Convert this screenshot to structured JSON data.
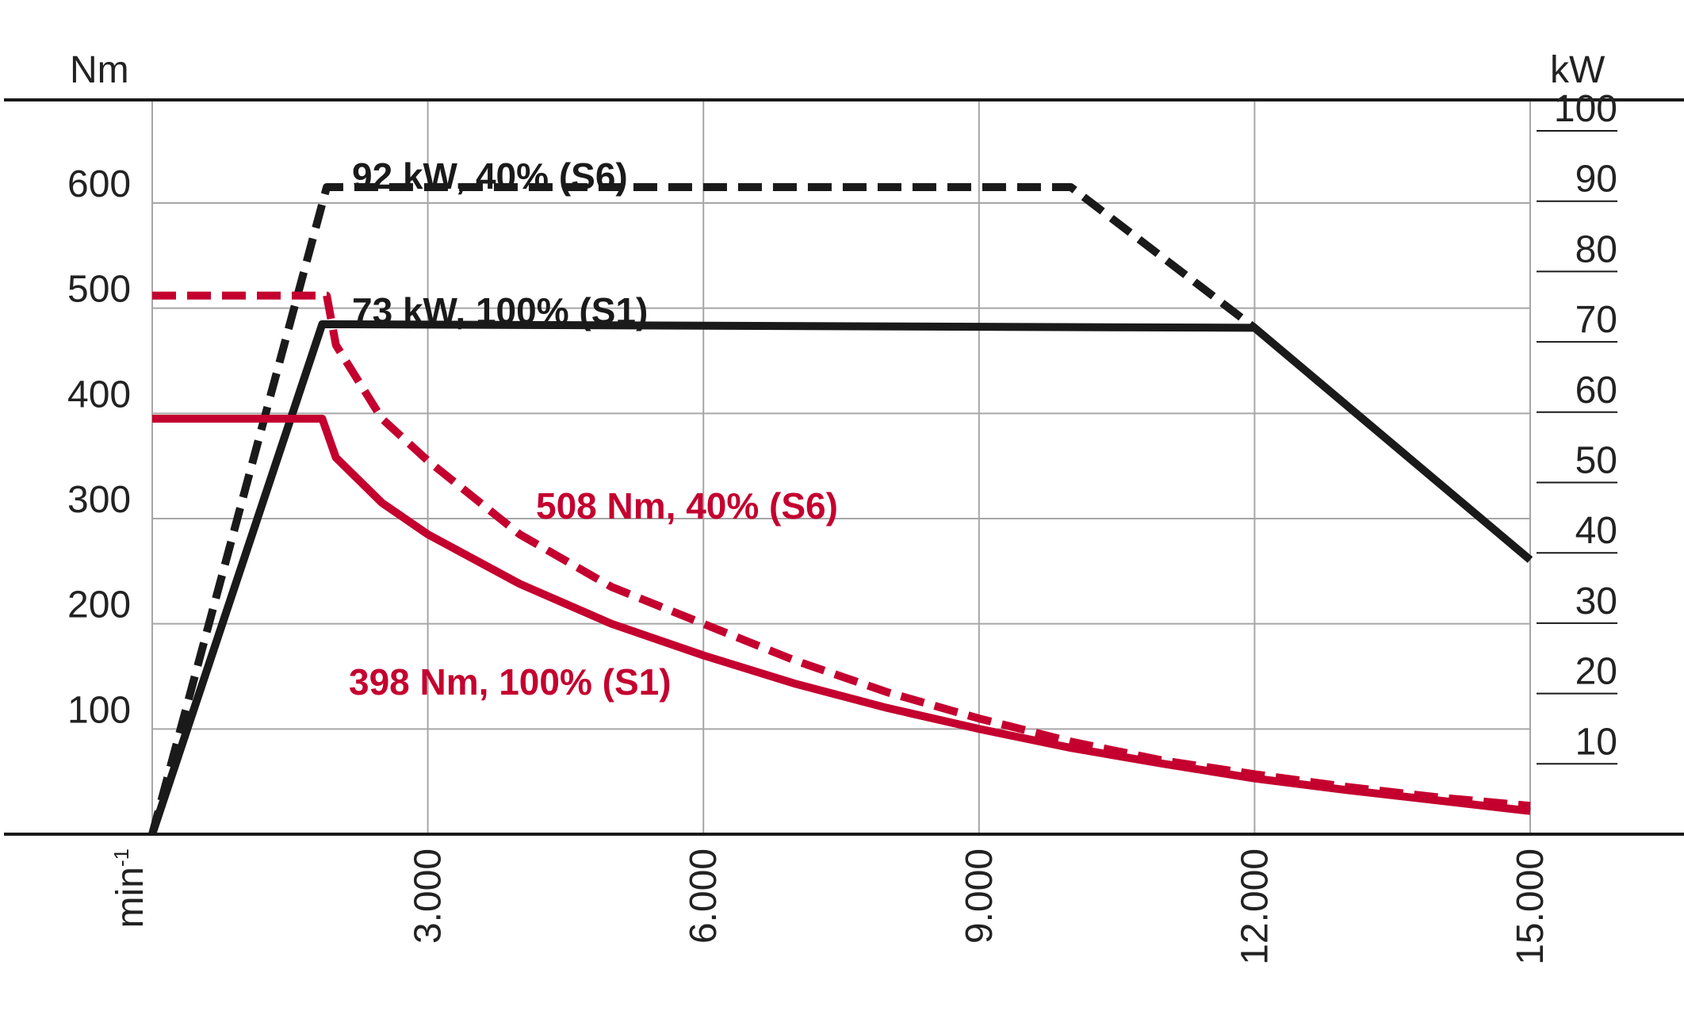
{
  "chart_data": {
    "type": "line",
    "left_axis_unit": "Nm",
    "right_axis_unit": "kW",
    "x_axis_unit": "min",
    "x_axis_unit_sup": "-1",
    "x_range": [
      0,
      15000
    ],
    "x_ticks": [
      {
        "value": 3000,
        "label": "3.000"
      },
      {
        "value": 6000,
        "label": "6.000"
      },
      {
        "value": 9000,
        "label": "9.000"
      },
      {
        "value": 12000,
        "label": "12.000"
      },
      {
        "value": 15000,
        "label": "15.000"
      }
    ],
    "left_range": [
      0,
      700
    ],
    "left_ticks": [
      {
        "value": 100,
        "label": "100"
      },
      {
        "value": 200,
        "label": "200"
      },
      {
        "value": 300,
        "label": "300"
      },
      {
        "value": 400,
        "label": "400"
      },
      {
        "value": 500,
        "label": "500"
      },
      {
        "value": 600,
        "label": "600"
      }
    ],
    "right_range": [
      0,
      107
    ],
    "right_ticks": [
      {
        "value": 10,
        "label": "10"
      },
      {
        "value": 20,
        "label": "20"
      },
      {
        "value": 30,
        "label": "30"
      },
      {
        "value": 40,
        "label": "40"
      },
      {
        "value": 50,
        "label": "50"
      },
      {
        "value": 60,
        "label": "60"
      },
      {
        "value": 70,
        "label": "70"
      },
      {
        "value": 80,
        "label": "80"
      },
      {
        "value": 90,
        "label": "90"
      },
      {
        "value": 100,
        "label": "100"
      }
    ],
    "grid": true,
    "series": [
      {
        "name": "92 kW, 40% (S6)",
        "quantity": "power",
        "axis": "right",
        "color": "#1a1a1a",
        "dashed": true,
        "points": [
          [
            0,
            0
          ],
          [
            1900,
            92
          ],
          [
            10000,
            92
          ],
          [
            12000,
            72
          ]
        ]
      },
      {
        "name": "73 kW, 100% (S1)",
        "quantity": "power",
        "axis": "right",
        "color": "#1a1a1a",
        "dashed": false,
        "points": [
          [
            0,
            0
          ],
          [
            1850,
            72.5
          ],
          [
            12000,
            72
          ],
          [
            15000,
            39
          ]
        ]
      },
      {
        "name": "508 Nm, 40% (S6)",
        "quantity": "torque",
        "axis": "left",
        "color": "#c4002f",
        "dashed": true,
        "points": [
          [
            0,
            512
          ],
          [
            1900,
            512
          ],
          [
            2000,
            465
          ],
          [
            2500,
            395
          ],
          [
            3000,
            355
          ],
          [
            4000,
            285
          ],
          [
            5000,
            235
          ],
          [
            6000,
            200
          ],
          [
            7000,
            165
          ],
          [
            8000,
            135
          ],
          [
            9000,
            110
          ],
          [
            10000,
            88
          ],
          [
            11000,
            70
          ],
          [
            12000,
            57
          ],
          [
            13000,
            45
          ],
          [
            14000,
            35
          ],
          [
            15000,
            27
          ]
        ]
      },
      {
        "name": "398 Nm, 100% (S1)",
        "quantity": "torque",
        "axis": "left",
        "color": "#c4002f",
        "dashed": false,
        "points": [
          [
            0,
            395
          ],
          [
            1850,
            395
          ],
          [
            2000,
            358
          ],
          [
            2500,
            315
          ],
          [
            3000,
            285
          ],
          [
            4000,
            238
          ],
          [
            5000,
            200
          ],
          [
            6000,
            170
          ],
          [
            7000,
            143
          ],
          [
            8000,
            120
          ],
          [
            9000,
            100
          ],
          [
            10000,
            82
          ],
          [
            11000,
            67
          ],
          [
            12000,
            53
          ],
          [
            13000,
            42
          ],
          [
            14000,
            32
          ],
          [
            15000,
            22
          ]
        ]
      }
    ]
  }
}
